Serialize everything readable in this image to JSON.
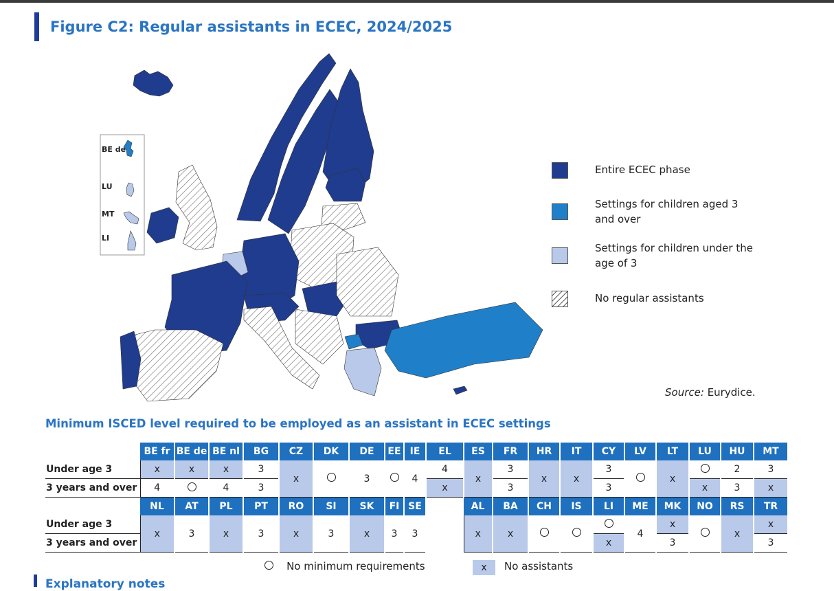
{
  "title": "Figure C2: Regular assistants in ECEC, 2024/2025",
  "inset_labels": [
    "BE de",
    "LU",
    "MT",
    "LI"
  ],
  "legend": [
    {
      "label": "Entire ECEC phase",
      "color": "#1f3c8f"
    },
    {
      "label": "Settings for children aged 3 and over",
      "color": "#1f7fc9"
    },
    {
      "label": "Settings for children under the age of 3",
      "color": "#b9c9ea"
    },
    {
      "label": "No regular assistants",
      "color": "hatched"
    }
  ],
  "source_label": "Source:",
  "source_value": "Eurydice.",
  "subtitle": "Minimum ISCED level required to be employed as an assistant in ECEC settings",
  "row_labels": {
    "under3": "Under age 3",
    "over3": "3 years and over"
  },
  "table1": [
    {
      "code": "BE fr",
      "u": "x",
      "o": "4"
    },
    {
      "code": "BE de",
      "u": "x",
      "o": "O"
    },
    {
      "code": "BE nl",
      "u": "x",
      "o": "4"
    },
    {
      "code": "BG",
      "u": "3",
      "o": "3"
    },
    {
      "code": "CZ",
      "merged": "x"
    },
    {
      "code": "DK",
      "merged": "O"
    },
    {
      "code": "DE",
      "merged": "3"
    },
    {
      "code": "EE",
      "merged": "O"
    },
    {
      "code": "IE",
      "merged": "4"
    },
    {
      "code": "EL",
      "u": "4",
      "o": "x"
    },
    {
      "code": "ES",
      "merged": "x"
    },
    {
      "code": "FR",
      "u": "3",
      "o": "3"
    },
    {
      "code": "HR",
      "merged": "x"
    },
    {
      "code": "IT",
      "merged": "x"
    },
    {
      "code": "CY",
      "u": "3",
      "o": "3"
    },
    {
      "code": "LV",
      "merged": "O"
    },
    {
      "code": "LT",
      "merged": "x"
    },
    {
      "code": "LU",
      "u": "O",
      "o": "x"
    },
    {
      "code": "HU",
      "u": "2",
      "o": "3"
    },
    {
      "code": "MT",
      "u": "3",
      "o": "x"
    }
  ],
  "table2": [
    {
      "code": "NL",
      "merged": "x"
    },
    {
      "code": "AT",
      "merged": "3"
    },
    {
      "code": "PL",
      "merged": "x"
    },
    {
      "code": "PT",
      "merged": "3"
    },
    {
      "code": "RO",
      "merged": "x"
    },
    {
      "code": "SI",
      "merged": "3"
    },
    {
      "code": "SK",
      "merged": "x"
    },
    {
      "code": "FI",
      "merged": "3"
    },
    {
      "code": "SE",
      "merged": "3"
    },
    {
      "code": "",
      "merged": ""
    },
    {
      "code": "AL",
      "merged": "x"
    },
    {
      "code": "BA",
      "merged": "x"
    },
    {
      "code": "CH",
      "merged": "O"
    },
    {
      "code": "IS",
      "merged": "O"
    },
    {
      "code": "LI",
      "u": "O",
      "o": "x"
    },
    {
      "code": "ME",
      "merged": "4"
    },
    {
      "code": "MK",
      "u": "x",
      "o": "3"
    },
    {
      "code": "NO",
      "merged": "O"
    },
    {
      "code": "RS",
      "merged": "x"
    },
    {
      "code": "TR",
      "u": "x",
      "o": "3"
    }
  ],
  "key": {
    "no_min": "No minimum requirements",
    "x_symbol": "x",
    "no_assist": "No assistants"
  },
  "notes_heading": "Explanatory notes"
}
